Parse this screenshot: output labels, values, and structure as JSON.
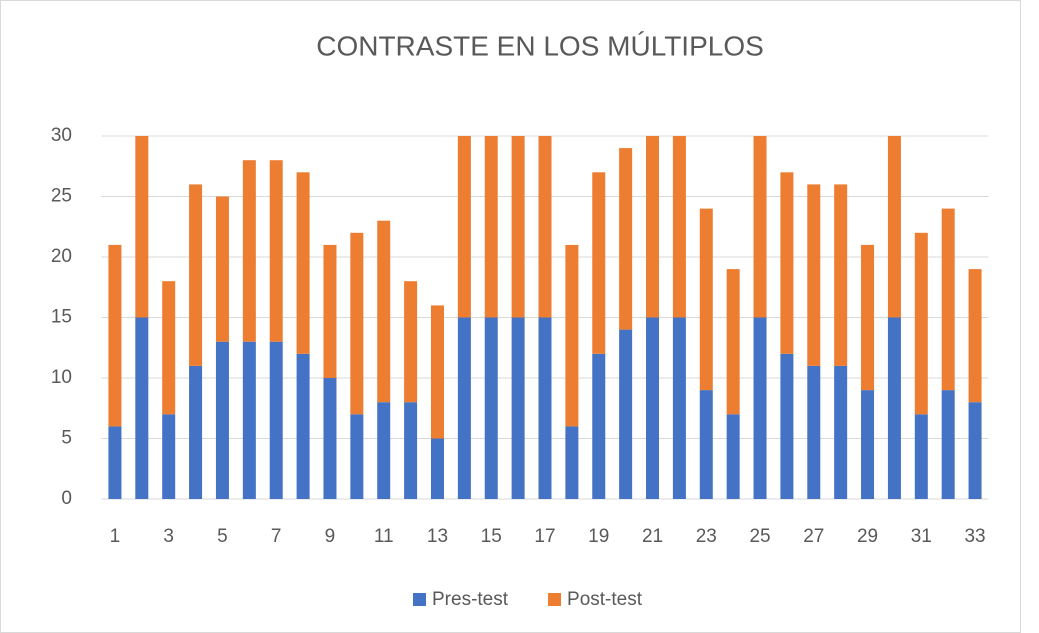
{
  "chart_data": {
    "type": "stacked_bar",
    "title": "CONTRASTE EN LOS MÚLTIPLOS",
    "categories": [
      "1",
      null,
      "3",
      null,
      "5",
      null,
      "7",
      null,
      "9",
      null,
      "11",
      null,
      "13",
      null,
      "15",
      null,
      "17",
      null,
      "19",
      null,
      "21",
      null,
      "23",
      null,
      "25",
      null,
      "27",
      null,
      "29",
      null,
      "31",
      null,
      "33"
    ],
    "series": [
      {
        "name": "Pres-test",
        "color": "#4472c4",
        "values": [
          6,
          15,
          7,
          11,
          13,
          13,
          13,
          12,
          10,
          7,
          8,
          8,
          5,
          15,
          15,
          15,
          15,
          6,
          12,
          14,
          15,
          15,
          9,
          7,
          15,
          12,
          11,
          11,
          9,
          15,
          7,
          9,
          8
        ]
      },
      {
        "name": "Post-test",
        "color": "#ed7d31",
        "values": [
          15,
          15,
          11,
          15,
          12,
          15,
          15,
          15,
          11,
          15,
          15,
          10,
          11,
          15,
          15,
          15,
          15,
          15,
          15,
          15,
          15,
          15,
          15,
          12,
          15,
          15,
          15,
          15,
          12,
          15,
          15,
          15,
          11
        ]
      }
    ],
    "ylim": [
      0,
      30
    ],
    "yticks": [
      0,
      5,
      10,
      15,
      20,
      25,
      30
    ],
    "grid": true,
    "legend": "bottom"
  }
}
